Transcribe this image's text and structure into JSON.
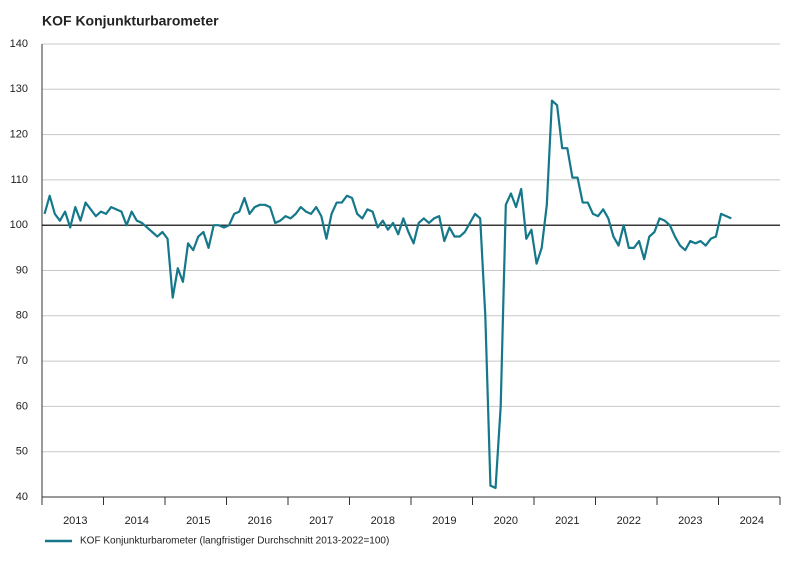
{
  "chart_data": {
    "type": "line",
    "title": "KOF Konjunkturbarometer",
    "categories": [
      null,
      null,
      null,
      null,
      null,
      null,
      "2013",
      null,
      null,
      null,
      null,
      null,
      null,
      null,
      null,
      null,
      null,
      null,
      "2014",
      null,
      null,
      null,
      null,
      null,
      null,
      null,
      null,
      null,
      null,
      null,
      "2015",
      null,
      null,
      null,
      null,
      null,
      null,
      null,
      null,
      null,
      null,
      null,
      "2016",
      null,
      null,
      null,
      null,
      null,
      null,
      null,
      null,
      null,
      null,
      null,
      "2017",
      null,
      null,
      null,
      null,
      null,
      null,
      null,
      null,
      null,
      null,
      null,
      "2018",
      null,
      null,
      null,
      null,
      null,
      null,
      null,
      null,
      null,
      null,
      null,
      "2019",
      null,
      null,
      null,
      null,
      null,
      null,
      null,
      null,
      null,
      null,
      null,
      "2020",
      null,
      null,
      null,
      null,
      null,
      null,
      null,
      null,
      null,
      null,
      null,
      "2021",
      null,
      null,
      null,
      null,
      null,
      null,
      null,
      null,
      null,
      null,
      null,
      "2022",
      null,
      null,
      null,
      null,
      null,
      null,
      null,
      null,
      null,
      null,
      null,
      "2023",
      null,
      null,
      null,
      null,
      null,
      null,
      null,
      null,
      null,
      null,
      null,
      "2024",
      null,
      null,
      null,
      null,
      null
    ],
    "series": [
      {
        "name": "KOF Konjunkturbarometer (langfristiger Durchschnitt 2013-2022=100)",
        "color": "#15788a",
        "values": [
          102.5,
          106.5,
          102.5,
          101,
          103,
          99.5,
          104,
          101,
          105,
          103.5,
          102,
          103,
          102.5,
          104,
          103.5,
          103,
          100,
          103,
          101,
          100.5,
          99.5,
          98.5,
          97.5,
          98.5,
          97,
          84,
          90.5,
          87.5,
          96,
          94.5,
          97.5,
          98.5,
          95,
          100,
          100,
          99.5,
          100,
          102.5,
          103,
          106,
          102.5,
          104,
          104.5,
          104.5,
          104,
          100.5,
          101,
          102,
          101.5,
          102.5,
          104,
          103,
          102.5,
          104,
          102,
          97,
          102.5,
          105,
          105,
          106.5,
          106,
          102.5,
          101.5,
          103.5,
          103,
          99.5,
          101,
          99,
          100.5,
          98,
          101.5,
          98.5,
          96,
          100.5,
          101.5,
          100.5,
          101.5,
          102,
          96.5,
          99.5,
          97.5,
          97.5,
          98.5,
          100.5,
          102.5,
          101.5,
          80,
          42.5,
          42,
          60,
          104.5,
          107,
          104,
          108,
          97,
          99,
          91.5,
          95,
          104.5,
          127.5,
          126.5,
          117,
          117,
          110.5,
          110.5,
          105,
          105,
          102.5,
          102,
          103.5,
          101.5,
          97.5,
          95.5,
          100,
          95,
          95,
          96.5,
          92.5,
          97.5,
          98.5,
          101.5,
          101,
          100,
          97.5,
          95.5,
          94.5,
          96.5,
          96,
          96.5,
          95.5,
          97,
          97.5,
          102.5,
          102,
          101.5,
          null,
          null,
          null,
          null,
          null,
          null,
          null,
          null,
          null
        ]
      }
    ],
    "ylim": [
      40,
      140
    ],
    "yticks": [
      40,
      50,
      60,
      70,
      80,
      90,
      100,
      110,
      120,
      130,
      140
    ],
    "grid": true,
    "reference_line": 100
  }
}
